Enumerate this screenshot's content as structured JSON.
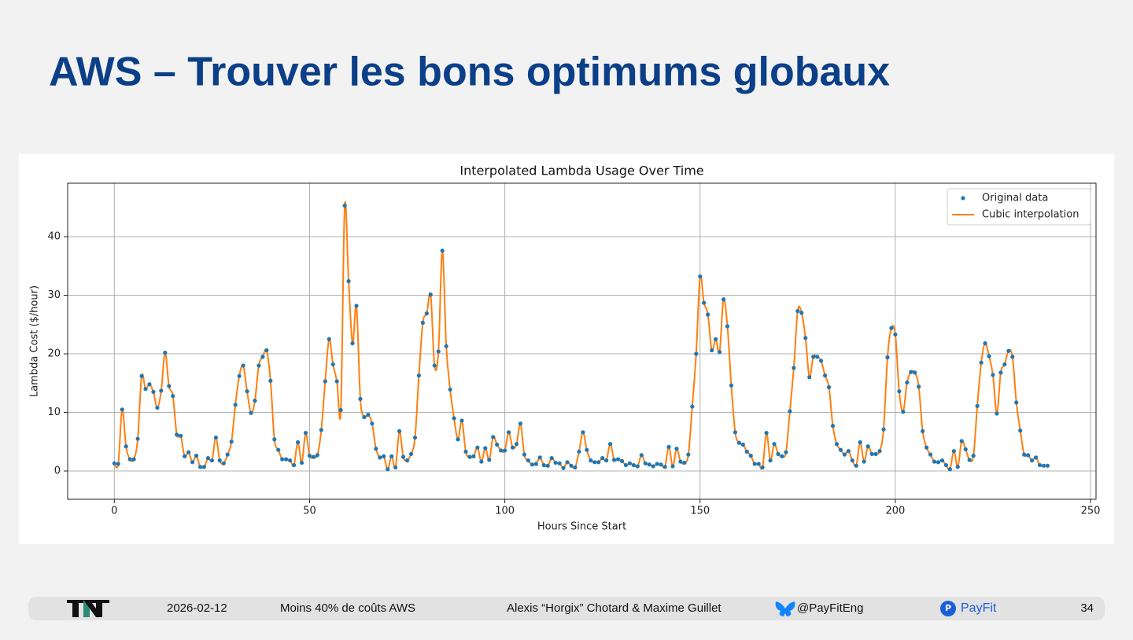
{
  "slide": {
    "title": "AWS – Trouver les bons optimums globaux",
    "footer": {
      "date": "2026-02-12",
      "talk": "Moins 40% de coûts AWS",
      "authors": "Alexis “Horgix” Chotard & Maxime Guillet",
      "handle": "@PayFitEng",
      "brand": "PayFit",
      "page": "34"
    }
  },
  "chart_data": {
    "type": "line",
    "title": "Interpolated Lambda Usage Over Time",
    "x_label": "Hours Since Start",
    "y_label": "Lambda Cost ($/hour)",
    "xlim": [
      -11.95,
      251.4
    ],
    "ylim": [
      -4.83,
      49.13
    ],
    "xticks": [
      0,
      50,
      100,
      150,
      200,
      250
    ],
    "yticks": [
      0,
      10,
      20,
      30,
      40
    ],
    "grid": true,
    "legend": "upper right",
    "x": [
      0,
      1,
      2,
      3,
      4,
      5,
      6,
      7,
      8,
      9,
      10,
      11,
      12,
      13,
      14,
      15,
      16,
      17,
      18,
      19,
      20,
      21,
      22,
      23,
      24,
      25,
      26,
      27,
      28,
      29,
      30,
      31,
      32,
      33,
      34,
      35,
      36,
      37,
      38,
      39,
      40,
      41,
      42,
      43,
      44,
      45,
      46,
      47,
      48,
      49,
      50,
      51,
      52,
      53,
      54,
      55,
      56,
      57,
      58,
      59,
      60,
      61,
      62,
      63,
      64,
      65,
      66,
      67,
      68,
      69,
      70,
      71,
      72,
      73,
      74,
      75,
      76,
      77,
      78,
      79,
      80,
      81,
      82,
      83,
      84,
      85,
      86,
      87,
      88,
      89,
      90,
      91,
      92,
      93,
      94,
      95,
      96,
      97,
      98,
      99,
      100,
      101,
      102,
      103,
      104,
      105,
      106,
      107,
      108,
      109,
      110,
      111,
      112,
      113,
      114,
      115,
      116,
      117,
      118,
      119,
      120,
      121,
      122,
      123,
      124,
      125,
      126,
      127,
      128,
      129,
      130,
      131,
      132,
      133,
      134,
      135,
      136,
      137,
      138,
      139,
      140,
      141,
      142,
      143,
      144,
      145,
      146,
      147,
      148,
      149,
      150,
      151,
      152,
      153,
      154,
      155,
      156,
      157,
      158,
      159,
      160,
      161,
      162,
      163,
      164,
      165,
      166,
      167,
      168,
      169,
      170,
      171,
      172,
      173,
      174,
      175,
      176,
      177,
      178,
      179,
      180,
      181,
      182,
      183,
      184,
      185,
      186,
      187,
      188,
      189,
      190,
      191,
      192,
      193,
      194,
      195,
      196,
      197,
      198,
      199,
      200,
      201,
      202,
      203,
      204,
      205,
      206,
      207,
      208,
      209,
      210,
      211,
      212,
      213,
      214,
      215,
      216,
      217,
      218,
      219,
      220,
      221,
      222,
      223,
      224,
      225,
      226,
      227,
      228,
      229,
      230,
      231,
      232,
      233,
      234,
      235,
      236,
      237,
      238,
      239
    ],
    "series": [
      {
        "name": "Original data",
        "color": "#1f77b4",
        "style": "marker",
        "values": [
          1.3,
          1.2,
          10.5,
          4.2,
          2.0,
          2.0,
          5.5,
          16.2,
          14.0,
          14.8,
          13.5,
          10.8,
          13.7,
          20.2,
          14.5,
          12.8,
          6.2,
          6.0,
          2.5,
          3.2,
          1.5,
          2.6,
          0.7,
          0.7,
          2.2,
          1.8,
          5.7,
          1.8,
          1.3,
          2.8,
          5.0,
          11.3,
          16.2,
          18.0,
          13.6,
          9.9,
          12.0,
          18.0,
          19.5,
          20.6,
          15.4,
          5.4,
          3.6,
          2.0,
          2.0,
          1.8,
          1.0,
          4.9,
          1.4,
          6.5,
          2.6,
          2.4,
          2.7,
          7.0,
          15.3,
          22.5,
          18.2,
          15.3,
          10.4,
          45.3,
          32.4,
          21.8,
          28.2,
          12.3,
          9.2,
          9.6,
          8.1,
          3.8,
          2.3,
          2.5,
          0.3,
          2.5,
          0.6,
          6.8,
          2.4,
          1.8,
          2.9,
          5.7,
          16.3,
          25.3,
          26.9,
          30.1,
          18.0,
          20.4,
          37.6,
          21.3,
          13.9,
          9.0,
          5.4,
          8.6,
          3.3,
          2.4,
          2.5,
          4.0,
          1.6,
          3.9,
          1.9,
          5.8,
          4.5,
          3.5,
          3.5,
          6.6,
          4.0,
          4.6,
          8.1,
          2.8,
          1.8,
          1.1,
          1.2,
          2.3,
          1.0,
          0.9,
          2.2,
          1.4,
          1.3,
          0.5,
          1.5,
          0.9,
          0.6,
          3.3,
          6.6,
          3.6,
          1.8,
          1.5,
          1.5,
          2.2,
          1.8,
          4.6,
          1.9,
          2.0,
          1.7,
          1.0,
          1.3,
          1.0,
          0.8,
          2.7,
          1.3,
          1.1,
          0.8,
          1.2,
          1.1,
          0.7,
          4.1,
          0.8,
          3.8,
          1.6,
          1.4,
          2.8,
          11.0,
          20.0,
          33.2,
          28.7,
          26.7,
          20.6,
          22.5,
          20.3,
          29.3,
          24.7,
          14.6,
          6.6,
          4.8,
          4.5,
          3.3,
          2.6,
          1.2,
          1.2,
          0.6,
          6.5,
          1.8,
          4.6,
          2.9,
          2.5,
          3.2,
          10.2,
          17.6,
          27.3,
          27.0,
          22.7,
          16.0,
          19.5,
          19.5,
          18.8,
          16.3,
          14.3,
          7.7,
          4.6,
          3.6,
          2.8,
          3.4,
          1.8,
          0.9,
          4.9,
          1.6,
          4.2,
          2.9,
          2.9,
          3.4,
          7.1,
          19.4,
          24.4,
          23.3,
          13.6,
          10.1,
          15.1,
          16.9,
          16.8,
          14.4,
          6.8,
          4.0,
          2.8,
          1.6,
          1.5,
          1.8,
          1.0,
          0.3,
          3.4,
          0.7,
          5.1,
          3.7,
          1.9,
          2.6,
          11.1,
          18.5,
          21.8,
          19.6,
          16.4,
          9.8,
          16.8,
          18.2,
          20.5,
          19.5,
          11.7,
          6.9,
          2.8,
          2.7,
          1.8,
          2.3,
          1.0,
          0.9,
          0.9
        ]
      },
      {
        "name": "Cubic interpolation",
        "color": "#ff7f0e",
        "style": "line"
      }
    ]
  }
}
